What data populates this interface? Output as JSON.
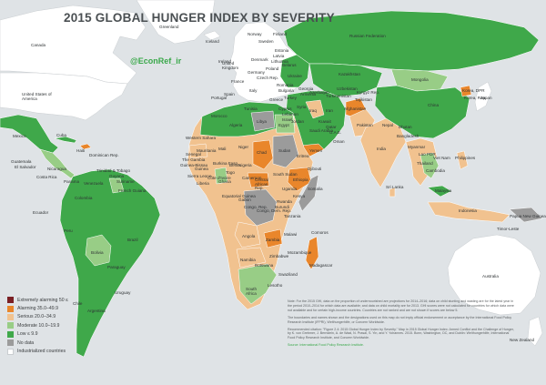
{
  "title": "2015 GLOBAL HUNGER INDEX BY SEVERITY",
  "handle": "@EconRef_ir",
  "colors": {
    "ocean": "#dfe3e6",
    "extremely_alarming": "#7a1f23",
    "alarming": "#e9862b",
    "serious": "#f1c28f",
    "moderate": "#98cd86",
    "low": "#3fa84a",
    "no_data": "#9b9b9b",
    "industrialized": "#ffffff"
  },
  "legend": [
    {
      "label": "Extremely alarming 50 ≤",
      "color": "#7a1f23"
    },
    {
      "label": "Alarming 35.0–49.9",
      "color": "#e9862b"
    },
    {
      "label": "Serious 20.0–34.9",
      "color": "#f1c28f"
    },
    {
      "label": "Moderate 10.0–19.9",
      "color": "#98cd86"
    },
    {
      "label": "Low ≤ 9.9",
      "color": "#3fa84a"
    },
    {
      "label": "No data",
      "color": "#9b9b9b"
    },
    {
      "label": "Industrialized countries",
      "color": "#ffffff"
    }
  ],
  "country_labels": [
    "Canada",
    "Greenland",
    "United States of America",
    "Mexico",
    "Cuba",
    "Haiti",
    "Dominican Rep.",
    "Guatemala",
    "El Salvador",
    "Nicaragua",
    "Costa Rica",
    "Panama",
    "Trinidad & Tobago",
    "Guyana",
    "Suriname",
    "French Guiana",
    "Venezuela",
    "Colombia",
    "Ecuador",
    "Peru",
    "Brazil",
    "Bolivia",
    "Paraguay",
    "Uruguay",
    "Chile",
    "Argentina",
    "Iceland",
    "Norway",
    "Sweden",
    "Finland",
    "Estonia",
    "Latvia",
    "Denmark",
    "Lithuania",
    "United Kingdom",
    "Ireland",
    "Poland",
    "Belarus",
    "Germany",
    "Czech Rep.",
    "Ukraine",
    "France",
    "Italy",
    "Spain",
    "Portugal",
    "Romania",
    "Bulgaria",
    "Greece",
    "Russian Federation",
    "Kazakhstan",
    "Mongolia",
    "Uzbekistan",
    "Kyrgyz Rep.",
    "Turkmenistan",
    "Tajikistan",
    "Georgia",
    "Armenia",
    "Azerbaijan",
    "Turkey",
    "Syria",
    "Iraq",
    "Iran",
    "Afghanistan",
    "Pakistan",
    "Cyprus",
    "Lebanon",
    "Israel",
    "Jordan",
    "Kuwait",
    "Saudi Arabia",
    "Yemen",
    "Oman",
    "U.A.E.",
    "Qatar",
    "Nepal",
    "Bhutan",
    "India",
    "Bangladesh",
    "Myanmar",
    "Lao PDR",
    "Thailand",
    "Cambodia",
    "Viet Nam",
    "Philippines",
    "Malaysia",
    "Indonesia",
    "Sri Lanka",
    "China",
    "Korea, DPR",
    "Korea, Rep.",
    "Japan",
    "Timor-Leste",
    "Papua New Guinea",
    "Australia",
    "New Zealand",
    "Morocco",
    "Algeria",
    "Tunisia",
    "Libya",
    "Egypt",
    "Western Sahara",
    "Mauritania",
    "Mali",
    "Niger",
    "Chad",
    "Sudan",
    "South Sudan",
    "Eritrea",
    "Ethiopia",
    "Djibouti",
    "Somalia",
    "Senegal",
    "The Gambia",
    "Guinea-Bissau",
    "Guinea",
    "Sierra Leone",
    "Liberia",
    "Côte d'Ivoire",
    "Burkina Faso",
    "Ghana",
    "Togo",
    "Benin",
    "Nigeria",
    "Cameroon",
    "Central African Rep.",
    "Equatorial Guinea",
    "Gabon",
    "Congo, Rep.",
    "Congo, Dem. Rep.",
    "Uganda",
    "Kenya",
    "Rwanda",
    "Burundi",
    "Tanzania",
    "Angola",
    "Zambia",
    "Malawi",
    "Mozambique",
    "Zimbabwe",
    "Namibia",
    "Botswana",
    "Madagascar",
    "Comoros",
    "Swaziland",
    "Lesotho",
    "South Africa"
  ],
  "notes": [
    "Note: For the 2015 GHI, data on the proportion of undernourished are projections for 2014–2016; data on child stunting and wasting are for the latest year in the period 2010–2014 for which data are available; and data on child mortality are for 2013. GHI scores were not calculated for countries for which data were not available and for certain high-income countries. Countries are not ranked and are not shown if scores are below 5.",
    "The boundaries and names shown and the designations used on this map do not imply official endorsement or acceptance by the International Food Policy Research Institute (IFPRI), Welthungerhilfe, or Concern Worldwide.",
    "Recommended citation: \"Figure 2.4: 2015 Global Hunger Index by Severity.\" Map in 2015 Global Hunger Index: Armed Conflict and the Challenge of Hunger, by K. von Grebmer, J. Bernstein, A. de Waal, N. Prasai, S. Yin, and Y. Yohannes. 2015. Bonn, Washington, DC, and Dublin: Welthungerhilfe, International Food Policy Research Institute, and Concern Worldwide.",
    "Source: International Food Policy Research Institute."
  ]
}
